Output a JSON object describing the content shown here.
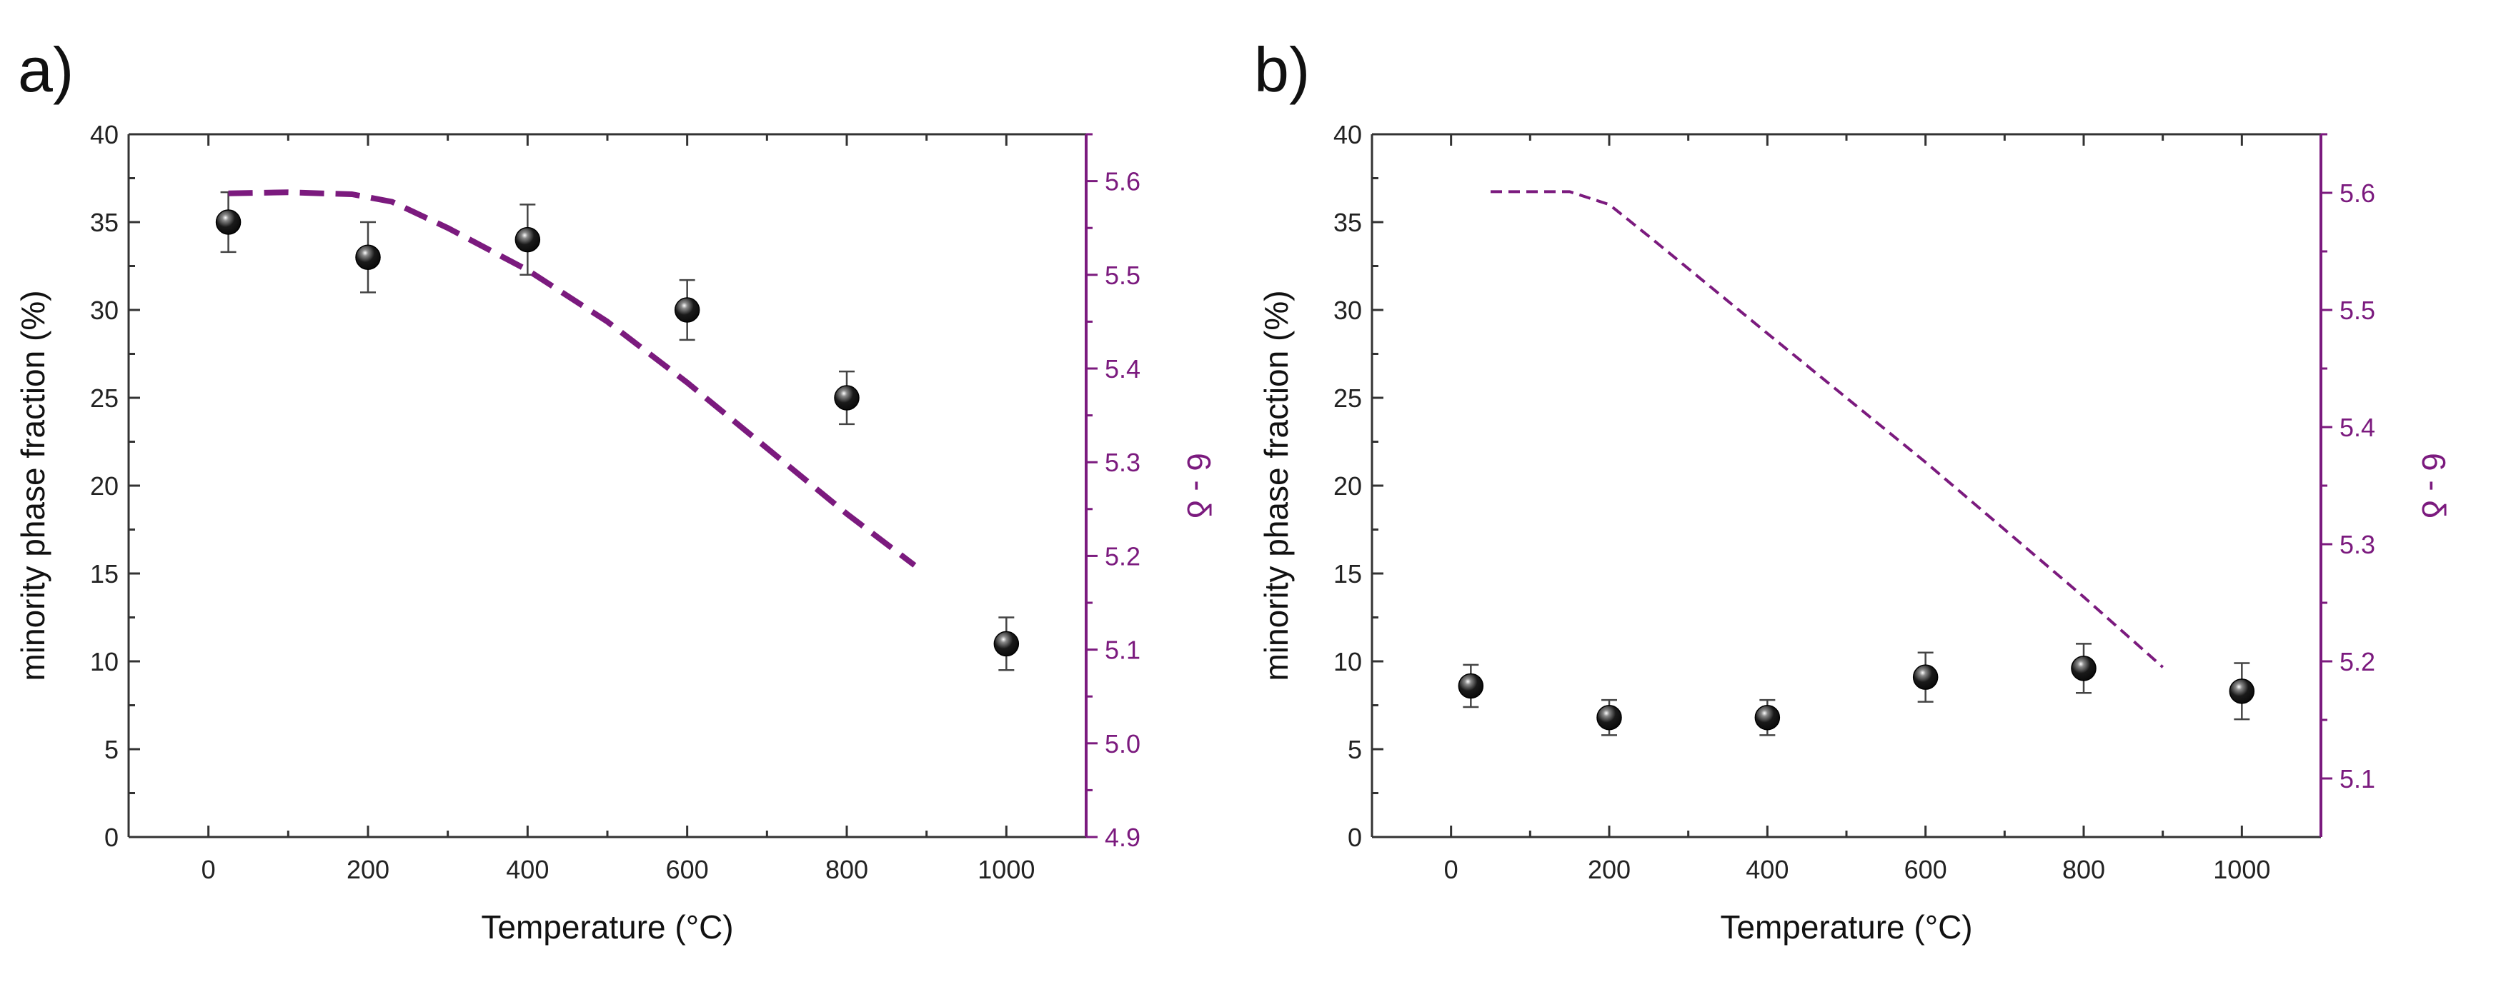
{
  "colors": {
    "axis": "#333333",
    "right_axis": "#7b1a7e",
    "marker": "#0a0a0a",
    "background": "#ffffff"
  },
  "chart_data": [
    {
      "panel_label": "a)",
      "type": "scatter",
      "xlabel": "Temperature (°C)",
      "ylabel": "minority phase fraction (%)",
      "y2label": "6 - δ",
      "xlim": [
        -100,
        1100
      ],
      "xticks": [
        0,
        200,
        400,
        600,
        800,
        1000
      ],
      "ylim": [
        0,
        40
      ],
      "yticks": [
        0,
        5,
        10,
        15,
        20,
        25,
        30,
        35,
        40
      ],
      "y2lim": [
        4.9,
        5.65
      ],
      "y2ticks": [
        4.9,
        5.0,
        5.1,
        5.2,
        5.3,
        5.4,
        5.5,
        5.6
      ],
      "series": [
        {
          "name": "minority phase fraction",
          "axis": "left",
          "marker": "sphere",
          "x": [
            25,
            200,
            400,
            600,
            800,
            1000
          ],
          "y": [
            35,
            33,
            34,
            30,
            25,
            11
          ],
          "yerr": [
            1.7,
            2.0,
            2.0,
            1.7,
            1.5,
            1.5
          ]
        },
        {
          "name": "6 - δ",
          "axis": "right",
          "style": "dashed-thick",
          "x": [
            25,
            100,
            180,
            230,
            300,
            400,
            500,
            600,
            700,
            800,
            885
          ],
          "y": [
            5.587,
            5.588,
            5.586,
            5.578,
            5.55,
            5.505,
            5.45,
            5.385,
            5.315,
            5.245,
            5.19
          ]
        }
      ]
    },
    {
      "panel_label": "b)",
      "type": "scatter",
      "xlabel": "Temperature (°C)",
      "ylabel": "minority phase fraction (%)",
      "y2label": "6 - δ",
      "xlim": [
        -100,
        1100
      ],
      "xticks": [
        0,
        200,
        400,
        600,
        800,
        1000
      ],
      "ylim": [
        0,
        40
      ],
      "yticks": [
        0,
        5,
        10,
        15,
        20,
        25,
        30,
        35,
        40
      ],
      "y2lim": [
        5.05,
        5.65
      ],
      "y2ticks": [
        5.1,
        5.2,
        5.3,
        5.4,
        5.5,
        5.6
      ],
      "series": [
        {
          "name": "minority phase fraction",
          "axis": "left",
          "marker": "sphere",
          "x": [
            25,
            200,
            400,
            600,
            800,
            1000
          ],
          "y": [
            8.6,
            6.8,
            6.8,
            9.1,
            9.6,
            8.3
          ],
          "yerr": [
            1.2,
            1.0,
            1.0,
            1.4,
            1.4,
            1.6
          ]
        },
        {
          "name": "6 - δ",
          "axis": "right",
          "style": "dashed-thin",
          "x": [
            50,
            150,
            200,
            250,
            400,
            600,
            800,
            900
          ],
          "y": [
            5.601,
            5.601,
            5.59,
            5.563,
            5.48,
            5.37,
            5.255,
            5.195
          ]
        }
      ]
    }
  ]
}
